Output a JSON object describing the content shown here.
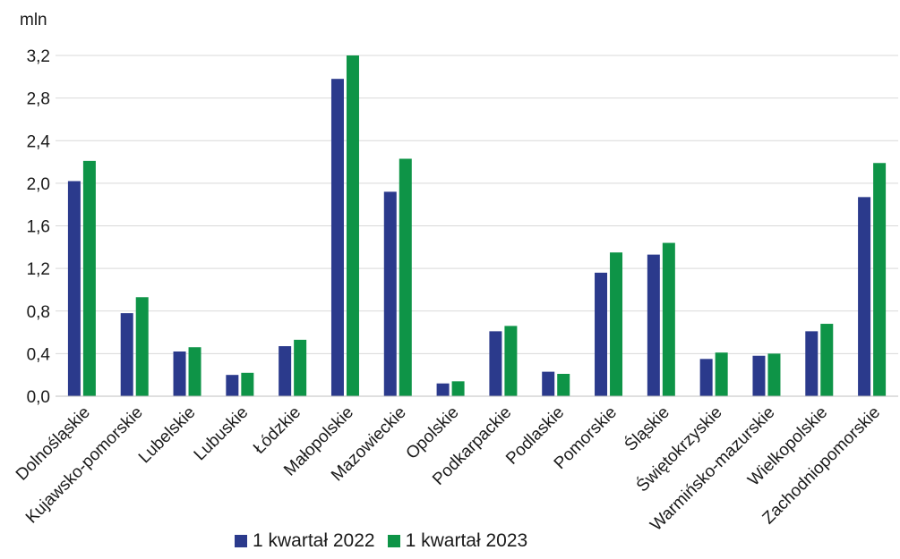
{
  "chart_data": {
    "type": "bar",
    "unit_label": "mln",
    "ylim": [
      0,
      3.2
    ],
    "yticks": [
      "0,0",
      "0,4",
      "0,8",
      "1,2",
      "1,6",
      "2,0",
      "2,4",
      "2,8",
      "3,2"
    ],
    "grid": true,
    "legend_position": "bottom",
    "categories": [
      "Dolnośląskie",
      "Kujawsko-pomorskie",
      "Lubelskie",
      "Lubuskie",
      "Łódzkie",
      "Małopolskie",
      "Mazowieckie",
      "Opolskie",
      "Podkarpackie",
      "Podlaskie",
      "Pomorskie",
      "Śląskie",
      "Świętokrzyskie",
      "Warmińsko-mazurskie",
      "Wielkopolskie",
      "Zachodniopomorskie"
    ],
    "series": [
      {
        "name": "1 kwartał 2022",
        "color": "#2b3a8c",
        "values": [
          2.02,
          0.78,
          0.42,
          0.2,
          0.47,
          2.98,
          1.92,
          0.12,
          0.61,
          0.23,
          1.16,
          1.33,
          0.35,
          0.38,
          0.61,
          1.87
        ]
      },
      {
        "name": "1 kwartał 2023",
        "color": "#0e9447",
        "values": [
          2.21,
          0.93,
          0.46,
          0.22,
          0.53,
          3.2,
          2.23,
          0.14,
          0.66,
          0.21,
          1.35,
          1.44,
          0.41,
          0.4,
          0.68,
          2.19
        ]
      }
    ]
  }
}
